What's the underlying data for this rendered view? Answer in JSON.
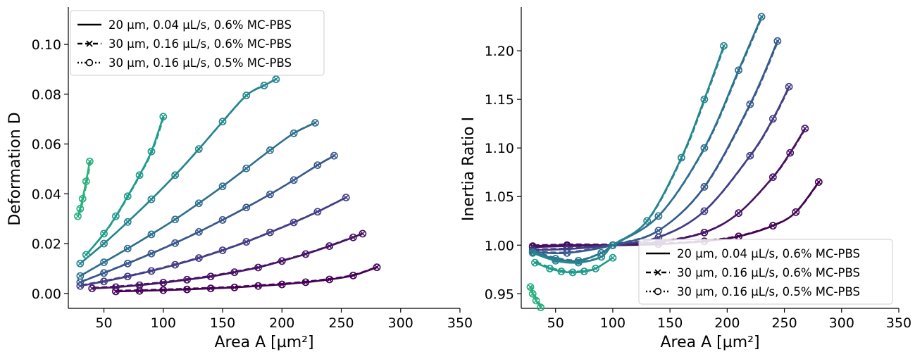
{
  "legend_entries": [
    {
      "label": "20 µm, 0.04 µL/s, 0.6% MC-PBS",
      "style": "solid"
    },
    {
      "label": "30 µm, 0.16 µL/s, 0.6% MC-PBS",
      "style": "dashed-x"
    },
    {
      "label": "30 µm, 0.16 µL/s, 0.5% MC-PBS",
      "style": "dotted-o"
    }
  ],
  "colors": [
    "#440154",
    "#471365",
    "#433e85",
    "#38598c",
    "#2d708e",
    "#25858e",
    "#1e9b8a",
    "#2ab07f"
  ],
  "chart_data": [
    {
      "type": "line",
      "title": "",
      "xlabel": "Area A [µm²]",
      "ylabel": "Deformation D",
      "xlim": [
        20,
        350
      ],
      "ylim": [
        -0.006,
        0.115
      ],
      "xticks": [
        50,
        100,
        150,
        200,
        250,
        300,
        350
      ],
      "yticks": [
        0.0,
        0.02,
        0.04,
        0.06,
        0.08,
        0.1
      ],
      "ytick_labels": [
        "0.00",
        "0.02",
        "0.04",
        "0.06",
        "0.08",
        "0.10"
      ],
      "grid": false,
      "legend_position": "top-left",
      "series": [
        {
          "x": [
            60,
            80,
            100,
            120,
            140,
            160,
            180,
            200,
            220,
            240,
            260,
            280
          ],
          "y": [
            0.0008,
            0.001,
            0.0013,
            0.0016,
            0.002,
            0.0024,
            0.003,
            0.0036,
            0.0045,
            0.0056,
            0.0072,
            0.0105
          ]
        },
        {
          "x": [
            40,
            60,
            80,
            100,
            120,
            140,
            160,
            180,
            200,
            220,
            240,
            260,
            268
          ],
          "y": [
            0.002,
            0.0025,
            0.0033,
            0.0043,
            0.0055,
            0.0068,
            0.0085,
            0.0104,
            0.013,
            0.0158,
            0.019,
            0.0225,
            0.024
          ]
        },
        {
          "x": [
            30,
            50,
            70,
            90,
            110,
            130,
            150,
            170,
            190,
            210,
            230,
            254
          ],
          "y": [
            0.003,
            0.0048,
            0.0068,
            0.009,
            0.0115,
            0.0142,
            0.0173,
            0.0207,
            0.0245,
            0.0285,
            0.0328,
            0.0385
          ]
        },
        {
          "x": [
            30,
            50,
            70,
            90,
            110,
            130,
            150,
            170,
            190,
            210,
            230,
            244
          ],
          "y": [
            0.0045,
            0.0082,
            0.012,
            0.016,
            0.0202,
            0.0247,
            0.0295,
            0.0345,
            0.0398,
            0.0455,
            0.0515,
            0.0553
          ]
        },
        {
          "x": [
            30,
            50,
            70,
            90,
            110,
            130,
            150,
            170,
            190,
            210,
            228
          ],
          "y": [
            0.007,
            0.0125,
            0.018,
            0.0237,
            0.0297,
            0.0362,
            0.043,
            0.0502,
            0.0575,
            0.0643,
            0.0685
          ]
        },
        {
          "x": [
            30,
            50,
            70,
            90,
            110,
            130,
            150,
            170,
            185,
            195
          ],
          "y": [
            0.012,
            0.02,
            0.0287,
            0.0378,
            0.0475,
            0.058,
            0.069,
            0.0795,
            0.0835,
            0.086
          ]
        },
        {
          "x": [
            35,
            50,
            60,
            70,
            80,
            90,
            100
          ],
          "y": [
            0.0155,
            0.024,
            0.031,
            0.039,
            0.0475,
            0.057,
            0.071
          ]
        },
        {
          "x": [
            28,
            30,
            32,
            35,
            38
          ],
          "y": [
            0.031,
            0.034,
            0.038,
            0.045,
            0.053
          ]
        }
      ]
    },
    {
      "type": "line",
      "title": "",
      "xlabel": "Area A [µm²]",
      "ylabel": "Inertia Ratio I",
      "xlim": [
        20,
        350
      ],
      "ylim": [
        0.935,
        1.245
      ],
      "xticks": [
        50,
        100,
        150,
        200,
        250,
        300,
        350
      ],
      "yticks": [
        0.95,
        1.0,
        1.05,
        1.1,
        1.15,
        1.2
      ],
      "ytick_labels": [
        "0.95",
        "1.00",
        "1.05",
        "1.10",
        "1.15",
        "1.20"
      ],
      "grid": false,
      "legend_position": "lower-right",
      "series": [
        {
          "x": [
            30,
            60,
            100,
            140,
            180,
            210,
            240,
            260,
            280
          ],
          "y": [
            0.999,
            1.0,
            1.0,
            1.001,
            1.004,
            1.009,
            1.02,
            1.034,
            1.065
          ]
        },
        {
          "x": [
            30,
            60,
            100,
            140,
            180,
            210,
            240,
            255,
            268
          ],
          "y": [
            0.998,
            0.999,
            1.0,
            1.003,
            1.013,
            1.033,
            1.07,
            1.095,
            1.12
          ]
        },
        {
          "x": [
            30,
            60,
            100,
            140,
            180,
            220,
            240,
            254
          ],
          "y": [
            0.995,
            0.996,
            1.0,
            1.008,
            1.035,
            1.092,
            1.13,
            1.163
          ]
        },
        {
          "x": [
            30,
            60,
            100,
            140,
            180,
            220,
            244
          ],
          "y": [
            0.993,
            0.992,
            1.0,
            1.015,
            1.06,
            1.145,
            1.21
          ]
        },
        {
          "x": [
            30,
            50,
            70,
            90,
            100,
            140,
            180,
            210,
            230
          ],
          "y": [
            0.993,
            0.986,
            0.984,
            0.992,
            1.0,
            1.03,
            1.1,
            1.18,
            1.235
          ]
        },
        {
          "x": [
            30,
            50,
            70,
            90,
            100,
            130,
            160,
            180,
            197
          ],
          "y": [
            0.992,
            0.984,
            0.982,
            0.988,
            1.0,
            1.025,
            1.09,
            1.15,
            1.205
          ]
        },
        {
          "x": [
            32,
            45,
            55,
            65,
            75,
            85,
            100
          ],
          "y": [
            0.982,
            0.976,
            0.973,
            0.972,
            0.973,
            0.976,
            0.987
          ]
        },
        {
          "x": [
            28,
            30,
            33,
            37
          ],
          "y": [
            0.957,
            0.95,
            0.943,
            0.936
          ]
        }
      ]
    }
  ]
}
